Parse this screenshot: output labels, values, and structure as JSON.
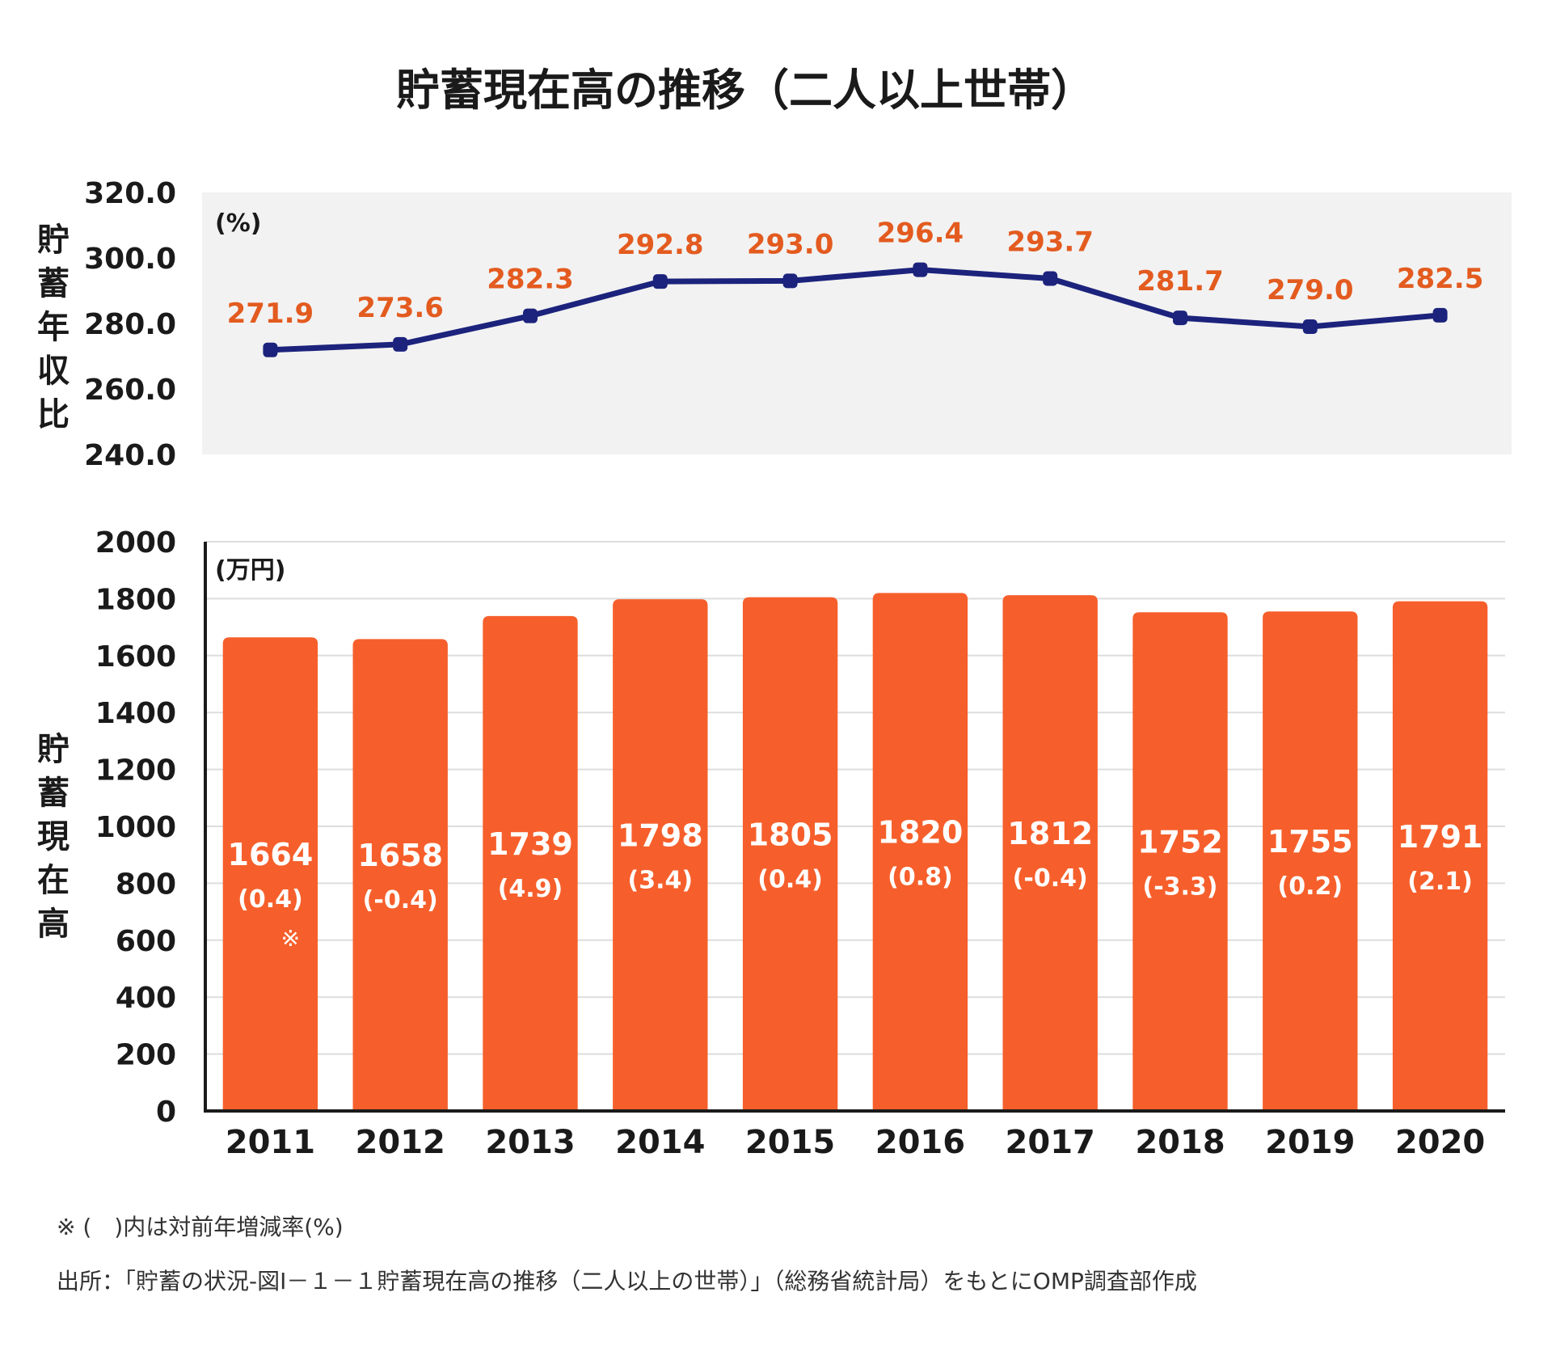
{
  "title": "貯蓄現在高の推移（二人以上世帯）",
  "colors": {
    "bar": "#f65f2b",
    "line": "#1c237c",
    "line_label": "#e35b1f",
    "panel_bg": "#f2f2f2",
    "grid": "#dddddd",
    "axis": "#1a1a1a"
  },
  "chart_data": [
    {
      "type": "line",
      "ylabel": "貯蓄年収比",
      "unit": "(%)",
      "ylim": [
        240.0,
        320.0
      ],
      "yticks": [
        "320.0",
        "300.0",
        "280.0",
        "260.0",
        "240.0"
      ],
      "x": [
        "2011",
        "2012",
        "2013",
        "2014",
        "2015",
        "2016",
        "2017",
        "2018",
        "2019",
        "2020"
      ],
      "values": [
        271.9,
        273.6,
        282.3,
        292.8,
        293.0,
        296.4,
        293.7,
        281.7,
        279.0,
        282.5
      ],
      "labels": [
        "271.9",
        "273.6",
        "282.3",
        "292.8",
        "293.0",
        "296.4",
        "293.7",
        "281.7",
        "279.0",
        "282.5"
      ]
    },
    {
      "type": "bar",
      "ylabel": "貯蓄現在高",
      "unit": "(万円)",
      "ylim": [
        0,
        2000
      ],
      "yticks": [
        "2000",
        "1800",
        "1600",
        "1400",
        "1200",
        "1000",
        "800",
        "600",
        "400",
        "200",
        "0"
      ],
      "categories": [
        "2011",
        "2012",
        "2013",
        "2014",
        "2015",
        "2016",
        "2017",
        "2018",
        "2019",
        "2020"
      ],
      "values": [
        1664,
        1658,
        1739,
        1798,
        1805,
        1820,
        1812,
        1752,
        1755,
        1791
      ],
      "value_labels": [
        "1664",
        "1658",
        "1739",
        "1798",
        "1805",
        "1820",
        "1812",
        "1752",
        "1755",
        "1791"
      ],
      "rate_labels": [
        "(0.4)",
        "(-0.4)",
        "(4.9)",
        "(3.4)",
        "(0.4)",
        "(0.8)",
        "(-0.4)",
        "(-3.3)",
        "(0.2)",
        "(2.1)"
      ],
      "mark": "※"
    }
  ],
  "notes": {
    "rate_note": "※ (　)内は対前年増減率(%)",
    "source": "出所：「貯蓄の状況-図Ⅰ－１－１貯蓄現在高の推移（二人以上の世帯）」（総務省統計局）をもとにOMP調査部作成"
  }
}
